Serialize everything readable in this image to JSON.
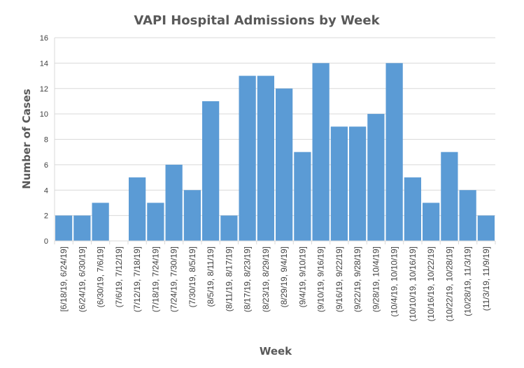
{
  "chart_data": {
    "type": "bar",
    "title": "VAPI Hospital Admissions by Week",
    "xlabel": "Week",
    "ylabel": "Number of Cases",
    "ylim": [
      0,
      16
    ],
    "yticks": [
      0,
      2,
      4,
      6,
      8,
      10,
      12,
      14,
      16
    ],
    "grid": true,
    "color": "#5b9bd5",
    "categories": [
      "[6/18/19, 6/24/19]",
      "(6/24/19, 6/30/19]",
      "(6/30/19, 7/6/19]",
      "(7/6/19, 7/12/19]",
      "(7/12/19, 7/18/19]",
      "(7/18/19, 7/24/19]",
      "(7/24/19, 7/30/19]",
      "(7/30/19, 8/5/19]",
      "(8/5/19, 8/11/19]",
      "(8/11/19, 8/17/19]",
      "(8/17/19, 8/23/19]",
      "(8/23/19, 8/29/19]",
      "(8/29/19, 9/4/19]",
      "(9/4/19, 9/10/19]",
      "(9/10/19, 9/16/19]",
      "(9/16/19, 9/22/19]",
      "(9/22/19, 9/28/19]",
      "(9/28/19, 10/4/19]",
      "(10/4/19, 10/10/19]",
      "(10/10/19, 10/16/19]",
      "(10/16/19, 10/22/19]",
      "(10/22/19, 10/28/19]",
      "(10/28/19, 11/3/19]",
      "(11/3/19, 11/9/19]"
    ],
    "values": [
      2,
      2,
      3,
      0,
      5,
      3,
      6,
      4,
      11,
      2,
      13,
      13,
      12,
      7,
      14,
      9,
      9,
      10,
      14,
      5,
      3,
      7,
      4,
      2
    ]
  }
}
